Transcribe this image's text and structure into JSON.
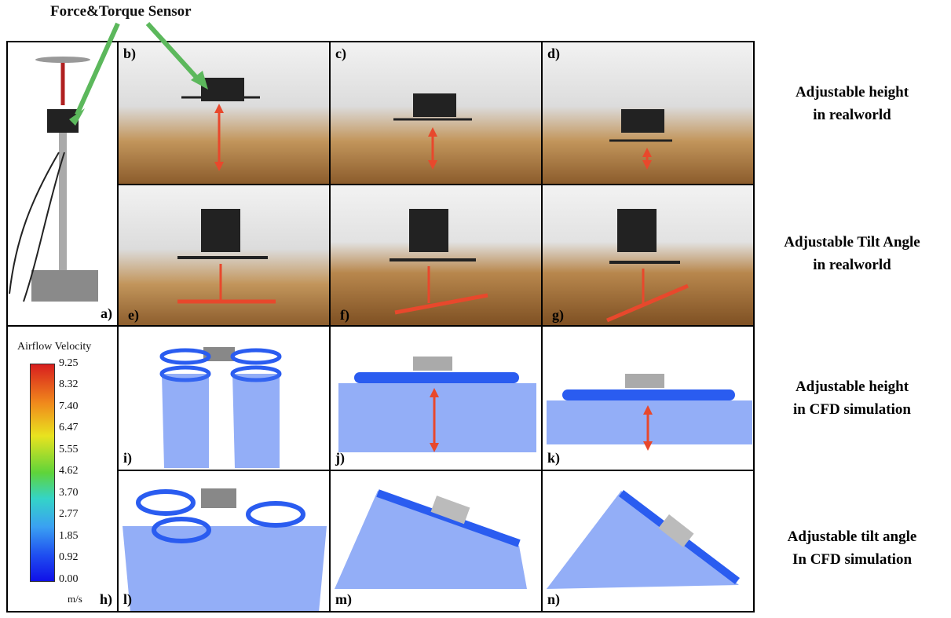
{
  "title": "Force&Torque Sensor",
  "panel_labels": {
    "a": "a)",
    "b": "b)",
    "c": "c)",
    "d": "d)",
    "e": "e)",
    "f": "f)",
    "g": "g)",
    "h": "h)",
    "i": "i)",
    "j": "j)",
    "k": "k)",
    "l": "l)",
    "m": "m)",
    "n": "n)"
  },
  "row_captions": [
    {
      "line1": "Adjustable height",
      "line2": "in realworld"
    },
    {
      "line1": "Adjustable Tilt Angle",
      "line2": "in realworld"
    },
    {
      "line1": "Adjustable height",
      "line2": "in CFD simulation"
    },
    {
      "line1": "Adjustable tilt angle",
      "line2": "In CFD simulation"
    }
  ],
  "colorbar": {
    "title": "Airflow Velocity",
    "unit": "m/s",
    "ticks": [
      "9.25",
      "8.32",
      "7.40",
      "6.47",
      "5.55",
      "4.62",
      "3.70",
      "2.77",
      "1.85",
      "0.92",
      "0.00"
    ]
  },
  "colors": {
    "arrow_green": "#5cb85c",
    "arrow_red": "#e8482c",
    "streamline_blue": "#2a5cf0"
  }
}
